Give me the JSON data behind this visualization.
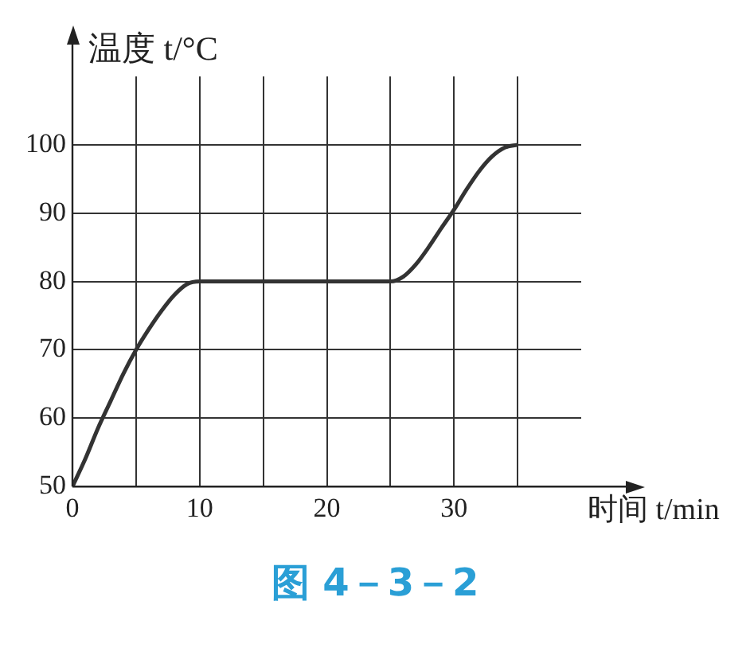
{
  "chart_data": {
    "type": "line",
    "xlabel": "时间 t/min",
    "ylabel": "温度 t/°C",
    "annotations": [
      "图 4－3－2"
    ],
    "x": [
      0,
      1,
      2,
      3,
      4,
      5,
      6,
      7,
      8,
      9,
      10,
      15,
      20,
      25,
      26,
      27,
      28,
      29,
      30,
      31,
      32,
      33,
      34,
      35
    ],
    "series": [
      {
        "color": "#333333",
        "values": [
          50,
          54,
          58.5,
          62.5,
          66.5,
          70,
          73,
          75.7,
          78,
          79.6,
          80,
          80,
          80,
          80,
          80.7,
          82.5,
          85,
          87.8,
          90.5,
          93.5,
          96.2,
          98.3,
          99.6,
          100
        ]
      }
    ],
    "xlim": [
      0,
      40
    ],
    "ylim": [
      50,
      110
    ],
    "xticks": [
      0,
      {
        "value": 5,
        "label": null
      },
      10,
      {
        "value": 15,
        "label": null
      },
      20,
      {
        "value": 25,
        "label": null
      },
      30,
      {
        "value": 35,
        "label": null
      }
    ],
    "yticks": [
      50,
      60,
      70,
      80,
      90,
      100
    ],
    "grid": true
  }
}
